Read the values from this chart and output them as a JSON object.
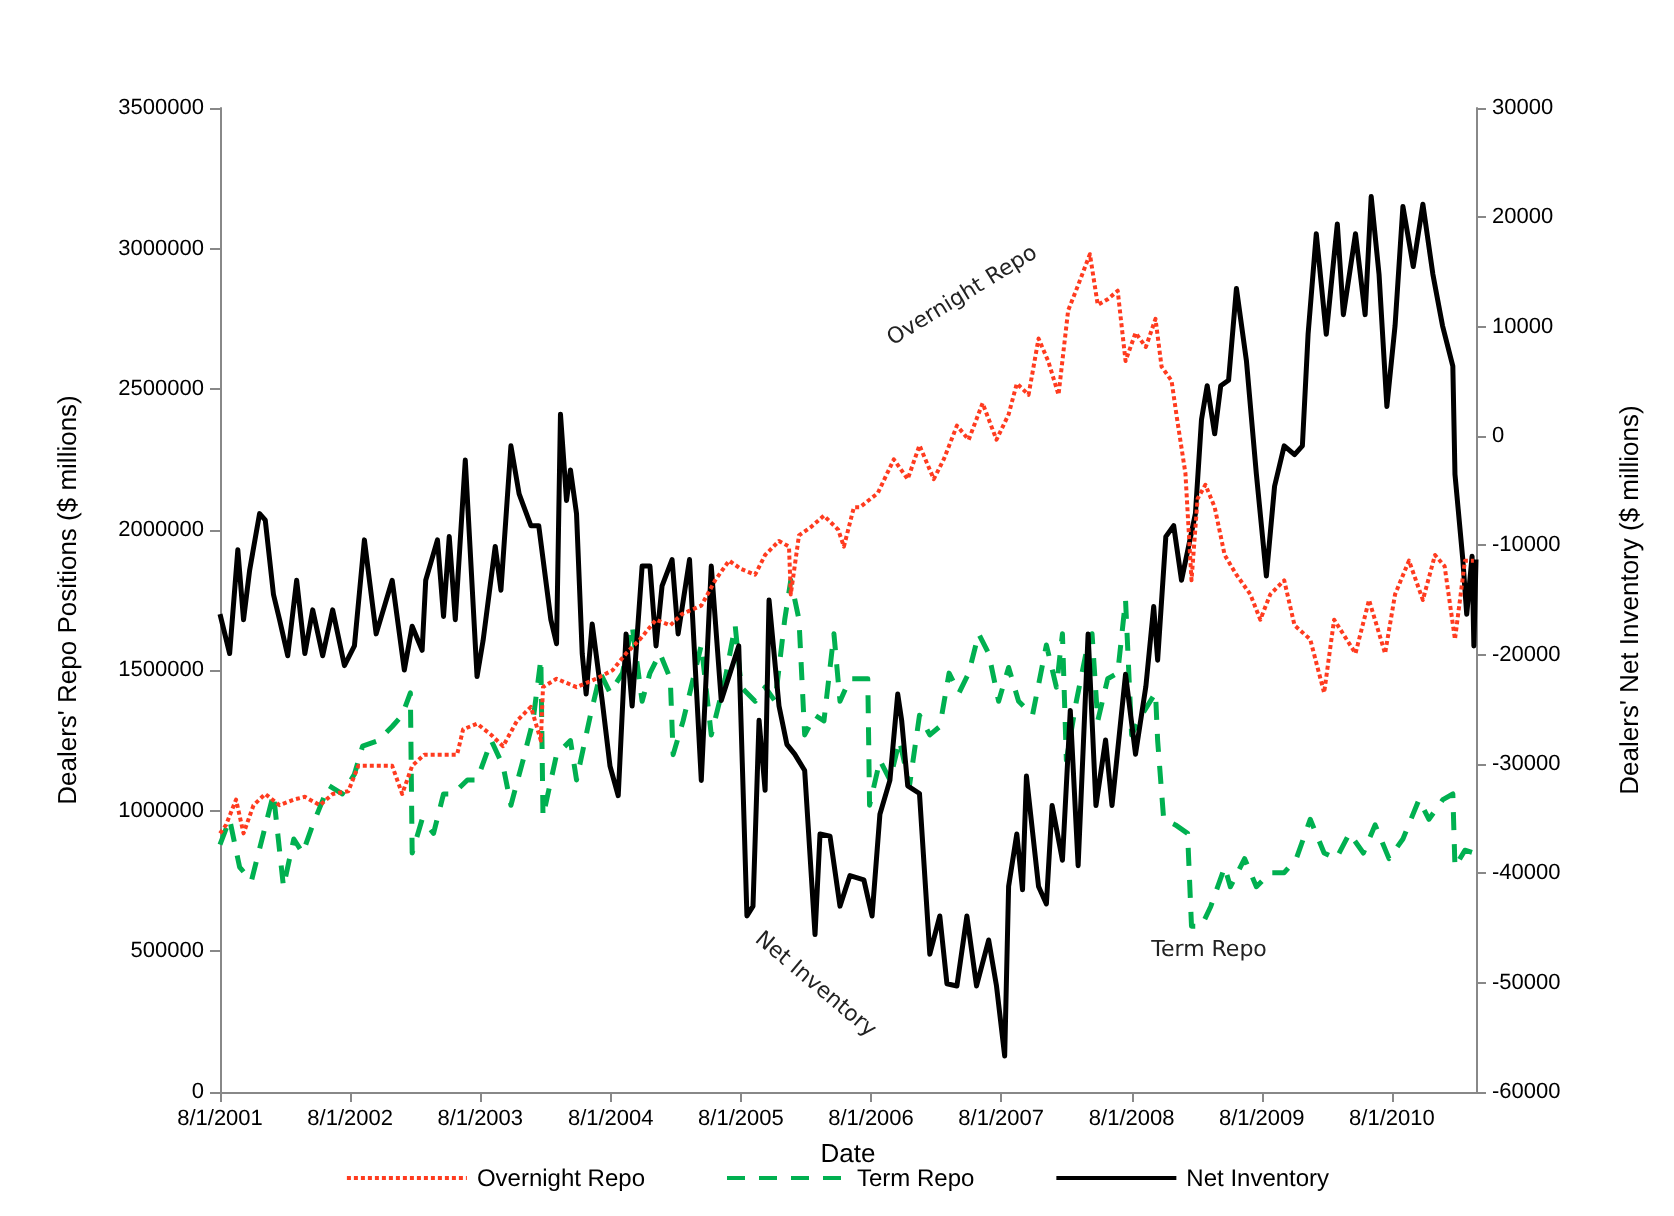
{
  "chart_data": {
    "type": "line",
    "xlabel": "Date",
    "ylabel": "Dealers' Repo Positions ($ millions)",
    "y2label": "Dealers' Net Inventory ($ millions)",
    "xlim": [
      "2001-08-01",
      "2011-03-25"
    ],
    "xticks": [
      {
        "value": "2001-08-01",
        "label": "8/1/2001"
      },
      {
        "value": "2002-08-01",
        "label": "8/1/2002"
      },
      {
        "value": "2003-08-01",
        "label": "8/1/2003"
      },
      {
        "value": "2004-08-01",
        "label": "8/1/2004"
      },
      {
        "value": "2005-08-01",
        "label": "8/1/2005"
      },
      {
        "value": "2006-08-01",
        "label": "8/1/2006"
      },
      {
        "value": "2007-08-01",
        "label": "8/1/2007"
      },
      {
        "value": "2008-08-01",
        "label": "8/1/2008"
      },
      {
        "value": "2009-08-01",
        "label": "8/1/2009"
      },
      {
        "value": "2010-08-01",
        "label": "8/1/2010"
      }
    ],
    "ylim": [
      0,
      3500000
    ],
    "yticks": [
      0,
      500000,
      1000000,
      1500000,
      2000000,
      2500000,
      3000000,
      3500000
    ],
    "y2lim": [
      -60000,
      30000
    ],
    "y2ticks": [
      -60000,
      -50000,
      -40000,
      -30000,
      -20000,
      -10000,
      0,
      10000,
      20000,
      30000
    ],
    "grid": false,
    "legend": "bottom",
    "marker": "none",
    "annotations": [
      "Overnight Repo",
      "Term Repo",
      "Net Inventory"
    ],
    "series": [
      {
        "name": "Overnight Repo",
        "color": "#ff3b1f",
        "line_style": "dotted",
        "x": [
          "2001-08-01",
          "2001-08-18",
          "2001-09-15",
          "2001-10-06",
          "2001-11-03",
          "2001-12-06",
          "2002-01-15",
          "2002-02-24",
          "2002-03-27",
          "2002-05-08",
          "2002-06-13",
          "2002-07-27",
          "2002-08-24",
          "2002-10-08",
          "2002-11-27",
          "2002-12-25",
          "2003-01-22",
          "2003-02-25",
          "2003-04-03",
          "2003-05-28",
          "2003-06-14",
          "2003-07-23",
          "2003-09-01",
          "2003-10-04",
          "2003-11-12",
          "2003-12-21",
          "2004-01-18",
          "2004-01-24",
          "2004-03-02",
          "2004-04-27",
          "2004-06-21",
          "2004-08-06",
          "2004-09-13",
          "2004-10-22",
          "2004-12-06",
          "2005-01-15",
          "2005-02-17",
          "2005-04-12",
          "2005-05-21",
          "2005-06-29",
          "2005-08-02",
          "2005-09-10",
          "2005-10-08",
          "2005-11-16",
          "2005-12-14",
          "2005-12-19",
          "2006-01-11",
          "2006-02-14",
          "2006-03-22",
          "2006-05-01",
          "2006-05-17",
          "2006-06-14",
          "2006-07-01",
          "2006-08-20",
          "2006-10-04",
          "2006-11-12",
          "2006-12-15",
          "2007-01-24",
          "2007-02-21",
          "2007-03-30",
          "2007-05-02",
          "2007-06-10",
          "2007-07-19",
          "2007-08-22",
          "2007-09-14",
          "2007-10-17",
          "2007-11-14",
          "2007-12-11",
          "2008-01-09",
          "2008-02-05",
          "2008-03-04",
          "2008-04-06",
          "2008-04-28",
          "2008-05-26",
          "2008-06-23",
          "2008-07-15",
          "2008-08-12",
          "2008-09-10",
          "2008-10-07",
          "2008-10-24",
          "2008-11-21",
          "2008-12-07",
          "2008-12-30",
          "2009-01-16",
          "2009-02-02",
          "2009-02-24",
          "2009-03-22",
          "2009-04-19",
          "2009-05-22",
          "2009-06-30",
          "2009-07-28",
          "2009-08-25",
          "2009-10-03",
          "2009-11-01",
          "2009-12-15",
          "2010-01-23",
          "2010-02-20",
          "2010-04-21",
          "2010-05-29",
          "2010-07-13",
          "2010-08-10",
          "2010-09-18",
          "2010-10-27",
          "2010-11-30",
          "2010-12-27",
          "2011-01-25",
          "2011-02-22",
          "2011-03-19"
        ],
        "values": [
          920000,
          950000,
          1040000,
          920000,
          1020000,
          1060000,
          1020000,
          1040000,
          1050000,
          1020000,
          1060000,
          1070000,
          1160000,
          1160000,
          1160000,
          1060000,
          1160000,
          1200000,
          1200000,
          1200000,
          1290000,
          1310000,
          1270000,
          1230000,
          1320000,
          1370000,
          1250000,
          1440000,
          1470000,
          1440000,
          1470000,
          1500000,
          1560000,
          1610000,
          1680000,
          1660000,
          1700000,
          1730000,
          1820000,
          1890000,
          1860000,
          1840000,
          1910000,
          1960000,
          1940000,
          1770000,
          1980000,
          2010000,
          2050000,
          2000000,
          1940000,
          2080000,
          2080000,
          2130000,
          2250000,
          2180000,
          2300000,
          2180000,
          2250000,
          2370000,
          2320000,
          2450000,
          2320000,
          2410000,
          2520000,
          2480000,
          2680000,
          2600000,
          2480000,
          2780000,
          2870000,
          2980000,
          2800000,
          2820000,
          2850000,
          2600000,
          2700000,
          2650000,
          2750000,
          2580000,
          2530000,
          2390000,
          2200000,
          1820000,
          2110000,
          2160000,
          2080000,
          1910000,
          1840000,
          1770000,
          1680000,
          1770000,
          1820000,
          1660000,
          1610000,
          1420000,
          1680000,
          1560000,
          1750000,
          1560000,
          1770000,
          1890000,
          1750000,
          1910000,
          1870000,
          1610000,
          1890000,
          1890000
        ]
      },
      {
        "name": "Term Repo",
        "color": "#00b050",
        "line_style": "dashed",
        "x": [
          "2001-08-01",
          "2001-08-28",
          "2001-09-25",
          "2001-10-28",
          "2001-12-01",
          "2001-12-29",
          "2002-01-26",
          "2002-02-24",
          "2002-03-21",
          "2002-04-18",
          "2002-06-02",
          "2002-07-10",
          "2002-08-13",
          "2002-09-05",
          "2002-10-19",
          "2002-11-27",
          "2002-12-25",
          "2003-01-17",
          "2003-01-22",
          "2003-02-19",
          "2003-03-23",
          "2003-04-20",
          "2003-05-17",
          "2003-06-26",
          "2003-07-23",
          "2003-09-01",
          "2003-10-04",
          "2003-10-26",
          "2003-11-29",
          "2003-12-27",
          "2004-01-18",
          "2004-01-24",
          "2004-03-02",
          "2004-04-10",
          "2004-04-27",
          "2004-06-05",
          "2004-07-03",
          "2004-07-30",
          "2004-09-03",
          "2004-09-30",
          "2004-10-28",
          "2004-11-19",
          "2004-12-17",
          "2005-01-15",
          "2005-01-23",
          "2005-02-20",
          "2005-04-12",
          "2005-05-10",
          "2005-06-18",
          "2005-07-16",
          "2005-08-02",
          "2005-09-10",
          "2005-10-08",
          "2005-11-05",
          "2005-12-02",
          "2005-12-19",
          "2006-01-11",
          "2006-01-27",
          "2006-02-25",
          "2006-03-22",
          "2006-04-19",
          "2006-05-06",
          "2006-06-03",
          "2006-07-23",
          "2006-07-28",
          "2006-08-26",
          "2006-09-23",
          "2006-10-20",
          "2006-11-17",
          "2006-12-15",
          "2007-01-13",
          "2007-02-10",
          "2007-03-08",
          "2007-04-05",
          "2007-05-02",
          "2007-05-30",
          "2007-06-27",
          "2007-07-25",
          "2007-08-22",
          "2007-09-19",
          "2007-10-28",
          "2007-12-06",
          "2008-01-03",
          "2008-01-20",
          "2008-01-31",
          "2008-02-28",
          "2008-03-26",
          "2008-04-12",
          "2008-04-28",
          "2008-05-26",
          "2008-06-23",
          "2008-07-15",
          "2008-08-01",
          "2008-08-29",
          "2008-10-07",
          "2008-10-13",
          "2008-10-30",
          "2008-12-02",
          "2009-01-05",
          "2009-01-16",
          "2009-02-13",
          "2009-03-11",
          "2009-04-19",
          "2009-05-05",
          "2009-06-14",
          "2009-07-17",
          "2009-08-25",
          "2009-10-03",
          "2009-11-06",
          "2009-12-15",
          "2010-01-23",
          "2010-02-26",
          "2010-04-04",
          "2010-05-13",
          "2010-06-15",
          "2010-07-24",
          "2010-09-01",
          "2010-10-16",
          "2010-11-13",
          "2010-12-22",
          "2011-01-19",
          "2011-01-25",
          "2011-02-22",
          "2011-03-19"
        ],
        "values": [
          880000,
          970000,
          800000,
          750000,
          920000,
          1060000,
          730000,
          900000,
          850000,
          950000,
          1090000,
          1060000,
          1130000,
          1230000,
          1250000,
          1300000,
          1340000,
          1420000,
          850000,
          970000,
          920000,
          1060000,
          1060000,
          1110000,
          1110000,
          1250000,
          1160000,
          1020000,
          1180000,
          1320000,
          1540000,
          980000,
          1200000,
          1250000,
          1110000,
          1340000,
          1490000,
          1420000,
          1490000,
          1660000,
          1390000,
          1490000,
          1560000,
          1470000,
          1200000,
          1320000,
          1590000,
          1270000,
          1470000,
          1660000,
          1440000,
          1390000,
          1440000,
          1390000,
          1680000,
          1820000,
          1680000,
          1270000,
          1340000,
          1320000,
          1630000,
          1390000,
          1470000,
          1470000,
          1020000,
          1180000,
          1110000,
          1250000,
          1090000,
          1340000,
          1270000,
          1300000,
          1490000,
          1420000,
          1490000,
          1630000,
          1560000,
          1390000,
          1510000,
          1390000,
          1340000,
          1590000,
          1440000,
          1630000,
          1180000,
          1390000,
          1560000,
          1630000,
          1320000,
          1470000,
          1490000,
          1750000,
          1270000,
          1340000,
          1420000,
          1250000,
          970000,
          950000,
          920000,
          590000,
          590000,
          660000,
          800000,
          730000,
          830000,
          730000,
          780000,
          780000,
          830000,
          970000,
          850000,
          830000,
          920000,
          850000,
          950000,
          830000,
          900000,
          1040000,
          970000,
          1040000,
          1060000,
          800000,
          860000,
          850000
        ]
      },
      {
        "name": "Net Inventory",
        "color": "#000000",
        "line_style": "solid",
        "axis": "y2",
        "x": [
          "2001-08-01",
          "2001-08-28",
          "2001-09-20",
          "2001-10-06",
          "2001-10-23",
          "2001-11-20",
          "2001-12-06",
          "2001-12-29",
          "2002-01-15",
          "2002-02-07",
          "2002-03-04",
          "2002-03-27",
          "2002-04-18",
          "2002-05-16",
          "2002-06-13",
          "2002-07-16",
          "2002-08-13",
          "2002-09-10",
          "2002-10-13",
          "2002-11-27",
          "2002-12-31",
          "2003-01-22",
          "2003-02-19",
          "2003-03-01",
          "2003-04-03",
          "2003-04-20",
          "2003-05-06",
          "2003-05-23",
          "2003-06-20",
          "2003-07-23",
          "2003-08-09",
          "2003-09-12",
          "2003-09-28",
          "2003-10-26",
          "2003-11-18",
          "2003-12-21",
          "2004-01-12",
          "2004-02-15",
          "2004-03-02",
          "2004-03-13",
          "2004-03-30",
          "2004-04-10",
          "2004-04-27",
          "2004-05-13",
          "2004-05-24",
          "2004-06-10",
          "2004-07-08",
          "2004-07-30",
          "2004-08-22",
          "2004-09-13",
          "2004-09-30",
          "2004-10-28",
          "2004-11-19",
          "2004-12-06",
          "2004-12-23",
          "2005-01-20",
          "2005-02-06",
          "2005-03-10",
          "2005-04-12",
          "2005-05-10",
          "2005-06-07",
          "2005-07-26",
          "2005-08-18",
          "2005-09-04",
          "2005-09-21",
          "2005-10-08",
          "2005-10-19",
          "2005-11-16",
          "2005-12-08",
          "2005-12-30",
          "2006-01-27",
          "2006-02-25",
          "2006-03-11",
          "2006-04-08",
          "2006-05-06",
          "2006-06-03",
          "2006-07-12",
          "2006-08-04",
          "2006-08-26",
          "2006-09-23",
          "2006-10-15",
          "2006-10-26",
          "2006-11-12",
          "2006-12-15",
          "2007-01-13",
          "2007-02-10",
          "2007-03-02",
          "2007-03-30",
          "2007-04-27",
          "2007-05-24",
          "2007-06-27",
          "2007-07-19",
          "2007-08-11",
          "2007-08-22",
          "2007-09-14",
          "2007-09-30",
          "2007-10-11",
          "2007-11-14",
          "2007-12-06",
          "2007-12-22",
          "2008-01-20",
          "2008-02-11",
          "2008-03-04",
          "2008-04-01",
          "2008-04-23",
          "2008-05-20",
          "2008-06-07",
          "2008-07-15",
          "2008-08-12",
          "2008-09-10",
          "2008-10-02",
          "2008-10-13",
          "2008-11-05",
          "2008-11-27",
          "2008-12-19",
          "2009-01-27",
          "2009-02-13",
          "2009-03-01",
          "2009-03-22",
          "2009-04-08",
          "2009-04-30",
          "2009-05-22",
          "2009-06-19",
          "2009-07-17",
          "2009-08-14",
          "2009-09-06",
          "2009-10-03",
          "2009-11-01",
          "2009-11-23",
          "2009-12-09",
          "2010-01-01",
          "2010-01-29",
          "2010-03-01",
          "2010-03-18",
          "2010-04-21",
          "2010-05-18",
          "2010-06-04",
          "2010-06-26",
          "2010-07-18",
          "2010-08-10",
          "2010-09-01",
          "2010-09-30",
          "2010-10-27",
          "2010-11-24",
          "2010-12-21",
          "2011-01-19",
          "2011-01-25",
          "2011-02-16",
          "2011-02-27",
          "2011-03-14",
          "2011-03-19",
          "2011-03-25"
        ],
        "values": [
          -16300,
          -19900,
          -10400,
          -16800,
          -12300,
          -7100,
          -7700,
          -14500,
          -16800,
          -20100,
          -13200,
          -19900,
          -15900,
          -20100,
          -15900,
          -21000,
          -19200,
          -9500,
          -18100,
          -13200,
          -21400,
          -17400,
          -19600,
          -13200,
          -9500,
          -16500,
          -9200,
          -16800,
          -2200,
          -22000,
          -18700,
          -10100,
          -14100,
          -900,
          -5300,
          -8200,
          -8200,
          -16800,
          -19000,
          2000,
          -5900,
          -3100,
          -7100,
          -19900,
          -23600,
          -17200,
          -24200,
          -30200,
          -32900,
          -18100,
          -24700,
          -11900,
          -11900,
          -19200,
          -13700,
          -11300,
          -18100,
          -11300,
          -31500,
          -11900,
          -24200,
          -19200,
          -43900,
          -43000,
          -26000,
          -32400,
          -15000,
          -24700,
          -28200,
          -29100,
          -30600,
          -45600,
          -36400,
          -36600,
          -43000,
          -40200,
          -40600,
          -43900,
          -34600,
          -31500,
          -23600,
          -26000,
          -32000,
          -32700,
          -47400,
          -43900,
          -50100,
          -50300,
          -43900,
          -50300,
          -46100,
          -50300,
          -56700,
          -41200,
          -36400,
          -41500,
          -31100,
          -41200,
          -42800,
          -33800,
          -38800,
          -25100,
          -39300,
          -18100,
          -33800,
          -27800,
          -33800,
          -21800,
          -29100,
          -22900,
          -15600,
          -20500,
          -9200,
          -8200,
          -13200,
          -7100,
          1500,
          4600,
          200,
          4600,
          5100,
          13500,
          6900,
          -3500,
          -12800,
          -4600,
          -900,
          -1700,
          -900,
          9300,
          18500,
          9300,
          19400,
          11100,
          18500,
          11100,
          21900,
          14800,
          2700,
          10100,
          21000,
          15500,
          21200,
          14800,
          10100,
          6400,
          -3500,
          -11300,
          -16300,
          -11000,
          -19200,
          -11300
        ]
      }
    ]
  }
}
